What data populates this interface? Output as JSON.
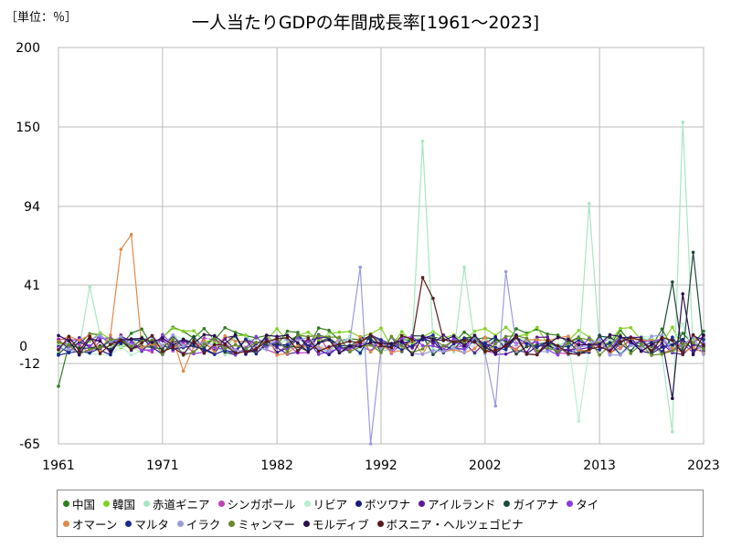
{
  "unit_label": "［単位：％］",
  "chart_data": {
    "type": "line",
    "title": "一人当たりGDPの年間成長率[1961～2023]",
    "xlabel": "",
    "ylabel": "",
    "x_ticks": [
      "1961",
      "1971",
      "1982",
      "1992",
      "2002",
      "2013",
      "2023"
    ],
    "y_ticks": [
      "200",
      "150",
      "94",
      "41",
      "0",
      "-12",
      "-65"
    ],
    "ylim": [
      -65,
      200
    ],
    "grid": true,
    "legend_position": "bottom",
    "highlights": {
      "赤道ギニア": [
        [
          1964,
          40
        ],
        [
          1996,
          140
        ],
        [
          2000,
          53
        ],
        [
          2012,
          96
        ],
        [
          2020,
          -57
        ],
        [
          2021,
          153
        ]
      ],
      "オマーン": [
        [
          1967,
          65
        ],
        [
          1968,
          75
        ],
        [
          1973,
          -17
        ]
      ],
      "イラク": [
        [
          1990,
          53
        ],
        [
          1991,
          -65
        ],
        [
          2003,
          -40
        ],
        [
          2004,
          50
        ]
      ],
      "ボスニア・ヘルツェゴビナ": [
        [
          1996,
          46
        ],
        [
          1997,
          32
        ]
      ],
      "ガイアナ": [
        [
          2020,
          43
        ],
        [
          2022,
          63
        ]
      ],
      "モルディブ": [
        [
          2020,
          -35
        ],
        [
          2021,
          35
        ]
      ],
      "リビア": [
        [
          2011,
          -50
        ],
        [
          2021,
          15
        ]
      ]
    },
    "series": [
      {
        "name": "中国",
        "color": "#2e7d1f"
      },
      {
        "name": "韓国",
        "color": "#7ed321"
      },
      {
        "name": "赤道ギニア",
        "color": "#a8e6c0"
      },
      {
        "name": "シンガポール",
        "color": "#c040c0"
      },
      {
        "name": "リビア",
        "color": "#b8efcf"
      },
      {
        "name": "ボツワナ",
        "color": "#1a1a80"
      },
      {
        "name": "アイルランド",
        "color": "#5a1a9a"
      },
      {
        "name": "ガイアナ",
        "color": "#1f4a3a"
      },
      {
        "name": "タイ",
        "color": "#8a3ae0"
      },
      {
        "name": "オマーン",
        "color": "#e08a4a"
      },
      {
        "name": "マルタ",
        "color": "#1a2a90"
      },
      {
        "name": "イラク",
        "color": "#9a9ae0"
      },
      {
        "name": "ミャンマー",
        "color": "#6a8a2a"
      },
      {
        "name": "モルディブ",
        "color": "#2a1050"
      },
      {
        "name": "ボスニア・ヘルツェゴビナ",
        "color": "#5a1a1a"
      }
    ]
  }
}
